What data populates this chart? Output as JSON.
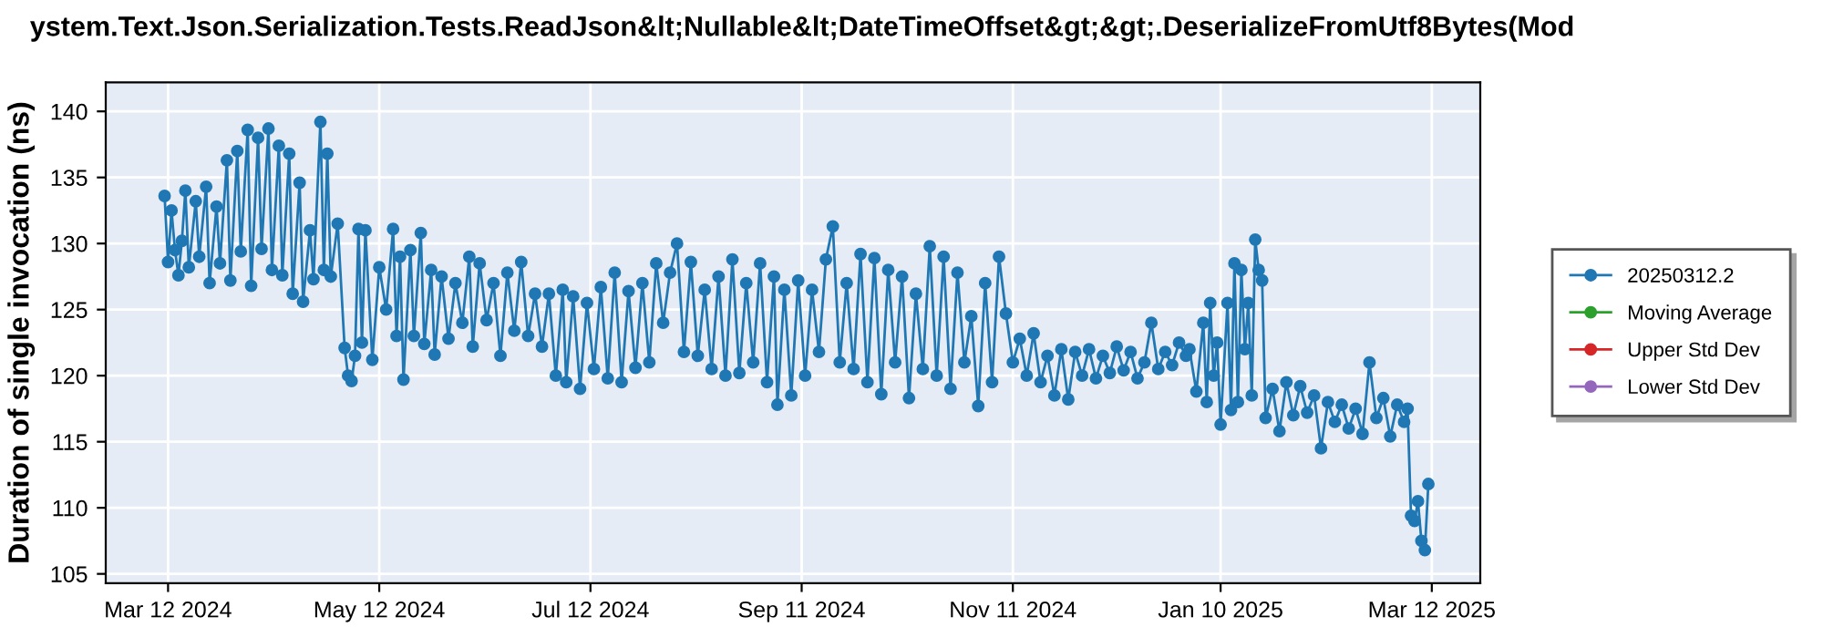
{
  "chart_data": {
    "type": "line",
    "title": "ystem.Text.Json.Serialization.Tests.ReadJson&lt;Nullable&lt;DateTimeOffset&gt;&gt;.DeserializeFromUtf8Bytes(Mod",
    "ylabel": "Duration of single invocation (ns)",
    "xlim": [
      "2024-02-23",
      "2025-03-26"
    ],
    "xticks": [
      {
        "value": "2024-03-12",
        "label": "Mar 12 2024"
      },
      {
        "value": "2024-05-12",
        "label": "May 12 2024"
      },
      {
        "value": "2024-07-12",
        "label": "Jul 12 2024"
      },
      {
        "value": "2024-09-11",
        "label": "Sep 11 2024"
      },
      {
        "value": "2024-11-11",
        "label": "Nov 11 2024"
      },
      {
        "value": "2025-01-10",
        "label": "Jan 10 2025"
      },
      {
        "value": "2025-03-12",
        "label": "Mar 12 2025"
      }
    ],
    "ylim": [
      104.3,
      142.2
    ],
    "yticks": [
      105,
      110,
      115,
      120,
      125,
      130,
      135,
      140
    ],
    "grid": true,
    "legend": "right",
    "marker": "circle",
    "line_style": "solid",
    "series": [
      {
        "name": "20250312.2",
        "color": "#1f77b4",
        "x": [
          "2024-03-11",
          "2024-03-12",
          "2024-03-13",
          "2024-03-14",
          "2024-03-15",
          "2024-03-16",
          "2024-03-17",
          "2024-03-18",
          "2024-03-20",
          "2024-03-21",
          "2024-03-23",
          "2024-03-24",
          "2024-03-26",
          "2024-03-27",
          "2024-03-29",
          "2024-03-30",
          "2024-04-01",
          "2024-04-02",
          "2024-04-04",
          "2024-04-05",
          "2024-04-07",
          "2024-04-08",
          "2024-04-10",
          "2024-04-11",
          "2024-04-13",
          "2024-04-14",
          "2024-04-16",
          "2024-04-17",
          "2024-04-19",
          "2024-04-20",
          "2024-04-22",
          "2024-04-23",
          "2024-04-25",
          "2024-04-26",
          "2024-04-27",
          "2024-04-28",
          "2024-04-30",
          "2024-05-02",
          "2024-05-03",
          "2024-05-04",
          "2024-05-05",
          "2024-05-06",
          "2024-05-07",
          "2024-05-08",
          "2024-05-10",
          "2024-05-12",
          "2024-05-14",
          "2024-05-16",
          "2024-05-17",
          "2024-05-18",
          "2024-05-19",
          "2024-05-21",
          "2024-05-22",
          "2024-05-24",
          "2024-05-25",
          "2024-05-27",
          "2024-05-28",
          "2024-05-30",
          "2024-06-01",
          "2024-06-03",
          "2024-06-05",
          "2024-06-07",
          "2024-06-08",
          "2024-06-10",
          "2024-06-12",
          "2024-06-14",
          "2024-06-16",
          "2024-06-18",
          "2024-06-20",
          "2024-06-22",
          "2024-06-24",
          "2024-06-26",
          "2024-06-28",
          "2024-06-30",
          "2024-07-02",
          "2024-07-04",
          "2024-07-05",
          "2024-07-07",
          "2024-07-09",
          "2024-07-11",
          "2024-07-13",
          "2024-07-15",
          "2024-07-17",
          "2024-07-19",
          "2024-07-21",
          "2024-07-23",
          "2024-07-25",
          "2024-07-27",
          "2024-07-29",
          "2024-07-31",
          "2024-08-02",
          "2024-08-04",
          "2024-08-06",
          "2024-08-08",
          "2024-08-10",
          "2024-08-12",
          "2024-08-14",
          "2024-08-16",
          "2024-08-18",
          "2024-08-20",
          "2024-08-22",
          "2024-08-24",
          "2024-08-26",
          "2024-08-28",
          "2024-08-30",
          "2024-09-01",
          "2024-09-03",
          "2024-09-04",
          "2024-09-06",
          "2024-09-08",
          "2024-09-10",
          "2024-09-12",
          "2024-09-14",
          "2024-09-16",
          "2024-09-18",
          "2024-09-20",
          "2024-09-22",
          "2024-09-24",
          "2024-09-26",
          "2024-09-28",
          "2024-09-30",
          "2024-10-02",
          "2024-10-04",
          "2024-10-06",
          "2024-10-08",
          "2024-10-10",
          "2024-10-12",
          "2024-10-14",
          "2024-10-16",
          "2024-10-18",
          "2024-10-20",
          "2024-10-22",
          "2024-10-24",
          "2024-10-26",
          "2024-10-28",
          "2024-10-30",
          "2024-11-01",
          "2024-11-03",
          "2024-11-05",
          "2024-11-07",
          "2024-11-09",
          "2024-11-11",
          "2024-11-13",
          "2024-11-15",
          "2024-11-17",
          "2024-11-19",
          "2024-11-21",
          "2024-11-23",
          "2024-11-25",
          "2024-11-27",
          "2024-11-29",
          "2024-12-01",
          "2024-12-03",
          "2024-12-05",
          "2024-12-07",
          "2024-12-09",
          "2024-12-11",
          "2024-12-13",
          "2024-12-15",
          "2024-12-17",
          "2024-12-19",
          "2024-12-21",
          "2024-12-23",
          "2024-12-25",
          "2024-12-27",
          "2024-12-29",
          "2024-12-31",
          "2025-01-01",
          "2025-01-03",
          "2025-01-05",
          "2025-01-06",
          "2025-01-07",
          "2025-01-08",
          "2025-01-09",
          "2025-01-10",
          "2025-01-12",
          "2025-01-13",
          "2025-01-14",
          "2025-01-15",
          "2025-01-16",
          "2025-01-17",
          "2025-01-18",
          "2025-01-19",
          "2025-01-20",
          "2025-01-21",
          "2025-01-22",
          "2025-01-23",
          "2025-01-25",
          "2025-01-27",
          "2025-01-29",
          "2025-01-31",
          "2025-02-02",
          "2025-02-04",
          "2025-02-06",
          "2025-02-08",
          "2025-02-10",
          "2025-02-12",
          "2025-02-14",
          "2025-02-16",
          "2025-02-18",
          "2025-02-20",
          "2025-02-22",
          "2025-02-24",
          "2025-02-26",
          "2025-02-28",
          "2025-03-02",
          "2025-03-04",
          "2025-03-05",
          "2025-03-06",
          "2025-03-07",
          "2025-03-08",
          "2025-03-09",
          "2025-03-10",
          "2025-03-11"
        ],
        "values": [
          133.6,
          128.6,
          132.5,
          129.5,
          127.6,
          130.2,
          134.0,
          128.2,
          133.2,
          129.0,
          134.3,
          127.0,
          132.8,
          128.5,
          136.3,
          127.2,
          137.0,
          129.4,
          138.6,
          126.8,
          138.0,
          129.6,
          138.7,
          128.0,
          137.4,
          127.6,
          136.8,
          126.2,
          134.6,
          125.6,
          131.0,
          127.3,
          139.2,
          128.0,
          136.8,
          127.5,
          131.5,
          122.1,
          120.0,
          119.6,
          121.5,
          131.1,
          122.5,
          131.0,
          121.2,
          128.2,
          125.0,
          131.1,
          123.0,
          129.0,
          119.7,
          129.5,
          123.0,
          130.8,
          122.4,
          128.0,
          121.6,
          127.5,
          122.8,
          127.0,
          124.0,
          129.0,
          122.2,
          128.5,
          124.2,
          127.0,
          121.5,
          127.8,
          123.4,
          128.6,
          123.0,
          126.2,
          122.2,
          126.2,
          120.0,
          126.5,
          119.5,
          126.0,
          119.0,
          125.5,
          120.5,
          126.7,
          119.8,
          127.8,
          119.5,
          126.4,
          120.6,
          127.0,
          121.0,
          128.5,
          124.0,
          127.8,
          130.0,
          121.8,
          128.6,
          121.5,
          126.5,
          120.5,
          127.5,
          120.0,
          128.8,
          120.2,
          127.0,
          121.0,
          128.5,
          119.5,
          127.5,
          117.8,
          126.5,
          118.5,
          127.2,
          120.0,
          126.5,
          121.8,
          128.8,
          131.3,
          121.0,
          127.0,
          120.5,
          129.2,
          119.5,
          128.9,
          118.6,
          128.0,
          121.0,
          127.5,
          118.3,
          126.2,
          120.5,
          129.8,
          120.0,
          129.0,
          119.0,
          127.8,
          121.0,
          124.5,
          117.7,
          127.0,
          119.5,
          129.0,
          124.7,
          121.0,
          122.8,
          120.0,
          123.2,
          119.5,
          121.5,
          118.5,
          122.0,
          118.2,
          121.8,
          120.0,
          122.0,
          119.8,
          121.5,
          120.2,
          122.2,
          120.4,
          121.8,
          119.8,
          121.0,
          124.0,
          120.5,
          121.8,
          120.8,
          122.5,
          121.5,
          122.0,
          118.8,
          124.0,
          118.0,
          125.5,
          120.0,
          122.5,
          116.3,
          125.5,
          117.4,
          128.5,
          118.0,
          128.0,
          122.0,
          125.5,
          118.5,
          130.3,
          128.0,
          127.2,
          116.8,
          119.0,
          115.8,
          119.5,
          117.0,
          119.2,
          117.2,
          118.5,
          114.5,
          118.0,
          116.5,
          117.8,
          116.0,
          117.5,
          115.6,
          121.0,
          116.8,
          118.3,
          115.4,
          117.8,
          116.5,
          117.5,
          109.4,
          109.0,
          110.5,
          107.5,
          106.8,
          111.8
        ]
      },
      {
        "name": "Moving Average",
        "color": "#2ca02c"
      },
      {
        "name": "Upper Std Dev",
        "color": "#d62728"
      },
      {
        "name": "Lower Std Dev",
        "color": "#9467bd"
      }
    ]
  }
}
